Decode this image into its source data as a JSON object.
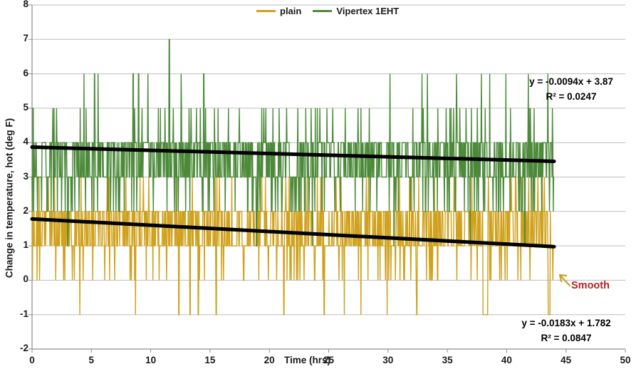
{
  "chart_data": {
    "type": "line",
    "title": "",
    "xlabel": "Time (hrs)",
    "ylabel": "Change in temperature, hot (deg F)",
    "xlim": [
      0,
      50
    ],
    "ylim": [
      -2,
      8
    ],
    "x_ticks": [
      0,
      5,
      10,
      15,
      20,
      25,
      30,
      35,
      40,
      45,
      50
    ],
    "y_ticks": [
      -2,
      -1,
      0,
      1,
      2,
      3,
      4,
      5,
      6,
      7,
      8
    ],
    "grid": "horizontal",
    "grid_color": "#bdbdbd",
    "axis_color": "#8c8c8c",
    "legend_position": "top-center",
    "description": "Dense quantized temperature-change time series sampled continuously from 0 to 44 hrs; values jump between integer degF levels forming solid bands with isolated spikes.",
    "series": [
      {
        "name": "plain",
        "color": "#cfa11c",
        "seed": 7,
        "sample_step_hrs": 0.035,
        "time_range_hrs": [
          0,
          44
        ],
        "base_values": [
          1,
          2
        ],
        "hold_prob": 0.3,
        "upper_spike": {
          "value": 3,
          "prob": 0.035
        },
        "lower_dip": {
          "value": 0,
          "prob": 0.06
        },
        "events": [
          {
            "value": -1,
            "spans": [
              [
                4.0,
                0.05
              ],
              [
                8.7,
                0.05
              ],
              [
                12.35,
                0.05
              ],
              [
                13.3,
                0.05
              ],
              [
                14.0,
                0.05
              ],
              [
                15.5,
                0.05
              ],
              [
                21.2,
                0.05
              ],
              [
                24.6,
                0.05
              ],
              [
                26.3,
                0.05
              ],
              [
                27.7,
                0.05
              ],
              [
                29.9,
                0.05
              ],
              [
                32.4,
                0.05
              ],
              [
                38.0,
                0.4
              ],
              [
                43.5,
                0.15
              ]
            ]
          }
        ],
        "trendline": {
          "equation": "y = -0.0183x + 1.782",
          "r2": "R² = 0.0847",
          "slope": -0.0183,
          "intercept": 1.782,
          "color": "#000000"
        }
      },
      {
        "name": "Vipertex 1EHT",
        "color": "#4c8a3a",
        "seed": 13,
        "sample_step_hrs": 0.035,
        "time_range_hrs": [
          0,
          44
        ],
        "base_values": [
          3,
          4
        ],
        "hold_prob": 0.3,
        "upper_spike": {
          "value": 5,
          "prob": 0.045
        },
        "lower_dip": {
          "value": 2,
          "prob": 0.09
        },
        "events": [
          {
            "value": 7,
            "spans": [
              [
                11.55,
                0.05
              ]
            ]
          },
          {
            "value": 6,
            "spans": [
              [
                4.35,
                0.05
              ],
              [
                5.25,
                0.05
              ],
              [
                5.55,
                0.05
              ],
              [
                8.5,
                0.05
              ],
              [
                8.95,
                0.05
              ],
              [
                9.75,
                0.05
              ],
              [
                12.55,
                0.05
              ],
              [
                14.45,
                0.05
              ],
              [
                30.15,
                0.05
              ],
              [
                32.85,
                0.05
              ],
              [
                33.3,
                0.05
              ],
              [
                35.75,
                0.05
              ],
              [
                37.85,
                0.05
              ],
              [
                38.55,
                0.05
              ],
              [
                39.9,
                0.05
              ],
              [
                41.8,
                0.05
              ],
              [
                43.45,
                0.05
              ]
            ]
          },
          {
            "value": 1,
            "spans": [
              [
                3.0,
                0.05
              ],
              [
                18.9,
                0.05
              ],
              [
                23.6,
                0.05
              ],
              [
                30.5,
                0.05
              ],
              [
                36.9,
                0.05
              ],
              [
                41.5,
                0.05
              ]
            ]
          }
        ],
        "trendline": {
          "equation": "y = -0.0094x + 3.87",
          "r2": "R² = 0.0247",
          "slope": -0.0094,
          "intercept": 3.87,
          "color": "#000000"
        }
      }
    ],
    "annotations": [
      {
        "text": "Smooth",
        "color": "#b22222",
        "arrow_color": "#c9a227",
        "points_to": "end of plain series near 0 degF at ~44 hrs"
      }
    ]
  }
}
